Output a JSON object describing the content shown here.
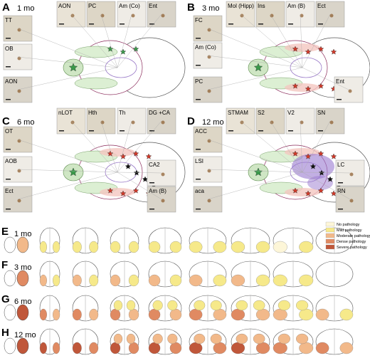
{
  "panels": [
    {
      "letter": "A",
      "age": "1 mo",
      "top_images": [
        "AON",
        "PC",
        "Am (Co)",
        "Ent"
      ],
      "left_images": [
        "TT",
        "OB",
        "AON"
      ],
      "right_images": []
    },
    {
      "letter": "B",
      "age": "3 mo",
      "top_images": [
        "Mol (Hipp)",
        "Ins",
        "Am (B)",
        "Ect"
      ],
      "left_images": [
        "FC",
        "Am (Co)",
        "PC"
      ],
      "right_images": [
        "Ent"
      ]
    },
    {
      "letter": "C",
      "age": "6 mo",
      "top_images": [
        "nLOT",
        "Hth",
        "Th",
        "DG +CA"
      ],
      "left_images": [
        "OT",
        "AOB",
        "Ect"
      ],
      "right_images": [
        "CA2",
        "Am (B)"
      ]
    },
    {
      "letter": "D",
      "age": "12 mo",
      "top_images": [
        "STMAM",
        "S2",
        "V2",
        "SN"
      ],
      "left_images": [
        "ACC",
        "LSI",
        "aca"
      ],
      "right_images": [
        "LC",
        "RN"
      ]
    }
  ],
  "sections": [
    {
      "letter": "E",
      "age": "1 mo"
    },
    {
      "letter": "F",
      "age": "3 mo"
    },
    {
      "letter": "G",
      "age": "6 mo"
    },
    {
      "letter": "H",
      "age": "12 mo"
    }
  ],
  "legend": [
    "No pathology",
    "Mild pathology",
    "Moderate pathology",
    "Dense pathology",
    "Severe pathology"
  ]
}
